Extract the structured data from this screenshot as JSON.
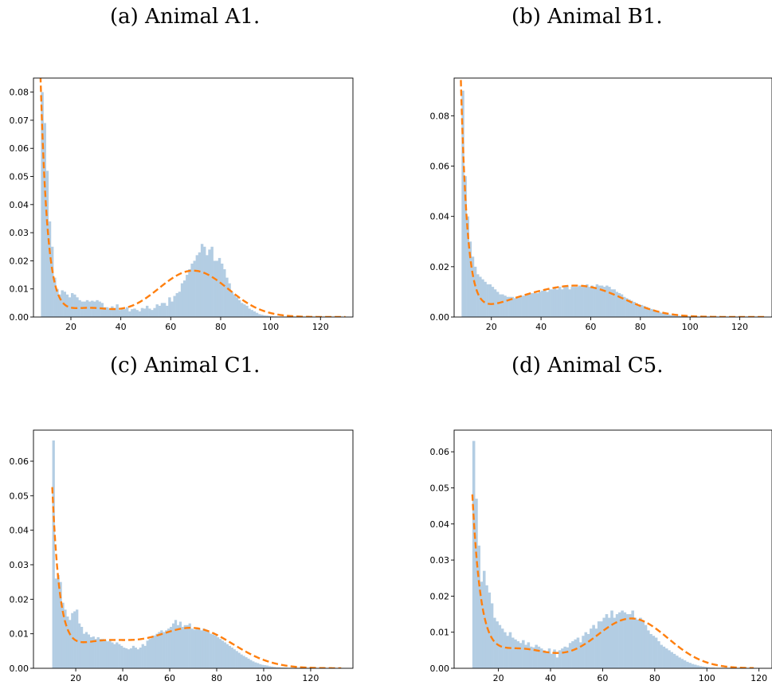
{
  "chart_data": [
    {
      "type": "histogram",
      "caption": "(a) Animal A1.",
      "xlim": [
        5,
        133
      ],
      "ylim": [
        0,
        0.085
      ],
      "xticks": [
        20,
        40,
        60,
        80,
        100,
        120
      ],
      "xtick_labels": [
        "20",
        "40",
        "60",
        "80",
        "100",
        "120"
      ],
      "yticks": [
        0,
        0.01,
        0.02,
        0.03,
        0.04,
        0.05,
        0.06,
        0.07,
        0.08
      ],
      "ytick_labels": [
        "0.00",
        "0.01",
        "0.02",
        "0.03",
        "0.04",
        "0.05",
        "0.06",
        "0.07",
        "0.08"
      ],
      "bin_width": 1,
      "bins_x": [
        8,
        9,
        10,
        11,
        12,
        13,
        14,
        15,
        16,
        17,
        18,
        19,
        20,
        21,
        22,
        23,
        24,
        25,
        26,
        27,
        28,
        29,
        30,
        31,
        32,
        33,
        34,
        35,
        36,
        37,
        38,
        39,
        40,
        41,
        42,
        43,
        44,
        45,
        46,
        47,
        48,
        49,
        50,
        51,
        52,
        53,
        54,
        55,
        56,
        57,
        58,
        59,
        60,
        61,
        62,
        63,
        64,
        65,
        66,
        67,
        68,
        69,
        70,
        71,
        72,
        73,
        74,
        75,
        76,
        77,
        78,
        79,
        80,
        81,
        82,
        83,
        84,
        85,
        86,
        87,
        88,
        89,
        90,
        91,
        92,
        93,
        94,
        95,
        96,
        97,
        98,
        99,
        100,
        101,
        102,
        103,
        104,
        105
      ],
      "bins_y": [
        0.08,
        0.069,
        0.052,
        0.034,
        0.025,
        0.014,
        0.01,
        0.008,
        0.0095,
        0.009,
        0.008,
        0.007,
        0.0085,
        0.008,
        0.007,
        0.006,
        0.0055,
        0.0055,
        0.006,
        0.0055,
        0.0058,
        0.0055,
        0.006,
        0.0055,
        0.005,
        0.0035,
        0.0035,
        0.003,
        0.0038,
        0.0032,
        0.0045,
        0.0025,
        0.003,
        0.0028,
        0.0035,
        0.002,
        0.0028,
        0.003,
        0.0025,
        0.002,
        0.0032,
        0.003,
        0.004,
        0.003,
        0.0025,
        0.0032,
        0.0045,
        0.004,
        0.005,
        0.005,
        0.004,
        0.007,
        0.0055,
        0.0075,
        0.0085,
        0.009,
        0.012,
        0.013,
        0.015,
        0.017,
        0.019,
        0.02,
        0.022,
        0.023,
        0.026,
        0.025,
        0.022,
        0.024,
        0.025,
        0.02,
        0.02,
        0.021,
        0.019,
        0.017,
        0.014,
        0.012,
        0.009,
        0.008,
        0.007,
        0.006,
        0.005,
        0.0045,
        0.004,
        0.003,
        0.0025,
        0.002,
        0.0015,
        0.001,
        0.0008,
        0.0006,
        0.0005,
        0.0004,
        0.0003,
        0.0002,
        0.0002,
        0.0001,
        0.0001,
        0.0001
      ],
      "fit": {
        "x_range": [
          7.5,
          130
        ],
        "components": [
          {
            "type": "exp",
            "a": 0.08,
            "x0": 8,
            "tau": 2.8
          },
          {
            "type": "gauss",
            "a": 0.0165,
            "mu": 69,
            "sd": 14
          },
          {
            "type": "gauss",
            "a": 0.003,
            "mu": 27,
            "sd": 9
          }
        ]
      }
    },
    {
      "type": "histogram",
      "caption": "(b) Animal B1.",
      "xlim": [
        5,
        133
      ],
      "ylim": [
        0,
        0.095
      ],
      "xticks": [
        20,
        40,
        60,
        80,
        100,
        120
      ],
      "xtick_labels": [
        "20",
        "40",
        "60",
        "80",
        "100",
        "120"
      ],
      "yticks": [
        0,
        0.02,
        0.04,
        0.06,
        0.08
      ],
      "ytick_labels": [
        "0.00",
        "0.02",
        "0.04",
        "0.06",
        "0.08"
      ],
      "bin_width": 1,
      "bins_x": [
        8,
        9,
        10,
        11,
        12,
        13,
        14,
        15,
        16,
        17,
        18,
        19,
        20,
        21,
        22,
        23,
        24,
        25,
        26,
        27,
        28,
        29,
        30,
        31,
        32,
        33,
        34,
        35,
        36,
        37,
        38,
        39,
        40,
        41,
        42,
        43,
        44,
        45,
        46,
        47,
        48,
        49,
        50,
        51,
        52,
        53,
        54,
        55,
        56,
        57,
        58,
        59,
        60,
        61,
        62,
        63,
        64,
        65,
        66,
        67,
        68,
        69,
        70,
        71,
        72,
        73,
        74,
        75,
        76,
        77,
        78,
        79,
        80,
        81,
        82,
        83,
        84,
        85,
        86,
        87,
        88,
        89,
        90,
        91,
        92,
        93,
        94,
        95,
        96,
        97,
        98,
        99,
        100,
        101,
        102,
        103,
        104,
        105,
        106,
        107,
        108,
        109,
        110
      ],
      "bins_y": [
        0.09,
        0.056,
        0.04,
        0.03,
        0.024,
        0.02,
        0.017,
        0.016,
        0.015,
        0.014,
        0.013,
        0.013,
        0.012,
        0.011,
        0.01,
        0.009,
        0.009,
        0.0085,
        0.008,
        0.008,
        0.008,
        0.0075,
        0.008,
        0.008,
        0.0085,
        0.0085,
        0.009,
        0.009,
        0.0095,
        0.0095,
        0.0095,
        0.01,
        0.0105,
        0.011,
        0.01,
        0.011,
        0.011,
        0.0115,
        0.011,
        0.012,
        0.011,
        0.012,
        0.0125,
        0.011,
        0.012,
        0.012,
        0.012,
        0.0125,
        0.012,
        0.012,
        0.013,
        0.012,
        0.0125,
        0.012,
        0.013,
        0.0125,
        0.0125,
        0.012,
        0.0125,
        0.012,
        0.011,
        0.011,
        0.01,
        0.0095,
        0.009,
        0.008,
        0.0075,
        0.007,
        0.0065,
        0.006,
        0.0055,
        0.005,
        0.0048,
        0.0044,
        0.004,
        0.0036,
        0.0032,
        0.0028,
        0.0024,
        0.002,
        0.0017,
        0.0014,
        0.0012,
        0.001,
        0.0008,
        0.0007,
        0.0006,
        0.0005,
        0.0004,
        0.0003,
        0.0003,
        0.0002,
        0.0002,
        0.0002,
        0.0001,
        0.0001,
        0.0001,
        0.0001,
        0.0001,
        0.0001,
        0.0001,
        0.0001,
        0.0001
      ],
      "fit": {
        "x_range": [
          7.5,
          130
        ],
        "components": [
          {
            "type": "exp",
            "a": 0.083,
            "x0": 8,
            "tau": 2.6
          },
          {
            "type": "gauss",
            "a": 0.0113,
            "mu": 58,
            "sd": 16
          },
          {
            "type": "gauss",
            "a": 0.0053,
            "mu": 32,
            "sd": 14
          }
        ]
      }
    },
    {
      "type": "histogram",
      "caption": "(c) Animal C1.",
      "xlim": [
        2,
        138
      ],
      "ylim": [
        0,
        0.069
      ],
      "xticks": [
        20,
        40,
        60,
        80,
        100,
        120
      ],
      "xtick_labels": [
        "20",
        "40",
        "60",
        "80",
        "100",
        "120"
      ],
      "yticks": [
        0,
        0.01,
        0.02,
        0.03,
        0.04,
        0.05,
        0.06
      ],
      "ytick_labels": [
        "0.00",
        "0.01",
        "0.02",
        "0.03",
        "0.04",
        "0.05",
        "0.06"
      ],
      "bin_width": 1,
      "bins_x": [
        10,
        11,
        12,
        13,
        14,
        15,
        16,
        17,
        18,
        19,
        20,
        21,
        22,
        23,
        24,
        25,
        26,
        27,
        28,
        29,
        30,
        31,
        32,
        33,
        34,
        35,
        36,
        37,
        38,
        39,
        40,
        41,
        42,
        43,
        44,
        45,
        46,
        47,
        48,
        49,
        50,
        51,
        52,
        53,
        54,
        55,
        56,
        57,
        58,
        59,
        60,
        61,
        62,
        63,
        64,
        65,
        66,
        67,
        68,
        69,
        70,
        71,
        72,
        73,
        74,
        75,
        76,
        77,
        78,
        79,
        80,
        81,
        82,
        83,
        84,
        85,
        86,
        87,
        88,
        89,
        90,
        91,
        92,
        93,
        94,
        95,
        96,
        97,
        98,
        99,
        100,
        101,
        102,
        103,
        104,
        105,
        106,
        107,
        108,
        109,
        110,
        111,
        112,
        113,
        114,
        115,
        116,
        117,
        118
      ],
      "bins_y": [
        0.066,
        0.026,
        0.027,
        0.025,
        0.019,
        0.017,
        0.015,
        0.014,
        0.016,
        0.0165,
        0.017,
        0.013,
        0.012,
        0.01,
        0.0105,
        0.0098,
        0.009,
        0.0092,
        0.0085,
        0.009,
        0.0085,
        0.0085,
        0.0082,
        0.0078,
        0.008,
        0.0075,
        0.007,
        0.0075,
        0.007,
        0.0065,
        0.006,
        0.0058,
        0.0055,
        0.0058,
        0.0065,
        0.006,
        0.0055,
        0.006,
        0.007,
        0.0065,
        0.008,
        0.0085,
        0.009,
        0.0095,
        0.01,
        0.0105,
        0.011,
        0.0105,
        0.011,
        0.0115,
        0.012,
        0.013,
        0.014,
        0.0125,
        0.0135,
        0.012,
        0.0125,
        0.0125,
        0.013,
        0.0115,
        0.0112,
        0.0118,
        0.0115,
        0.011,
        0.0115,
        0.011,
        0.0105,
        0.01,
        0.0098,
        0.0095,
        0.009,
        0.0085,
        0.008,
        0.0075,
        0.007,
        0.0065,
        0.006,
        0.0055,
        0.005,
        0.0045,
        0.004,
        0.0036,
        0.0032,
        0.0028,
        0.0024,
        0.002,
        0.0017,
        0.0015,
        0.0012,
        0.001,
        0.0009,
        0.0008,
        0.0006,
        0.0005,
        0.0004,
        0.0003,
        0.0003,
        0.0002,
        0.0002,
        0.0002,
        0.0001,
        0.0001,
        0.0001,
        0.0001,
        0.0001,
        0.0001,
        0.0001,
        0.0001,
        0.0001
      ],
      "fit": {
        "x_range": [
          10,
          133
        ],
        "components": [
          {
            "type": "exp",
            "a": 0.0495,
            "x0": 10,
            "tau": 3.2
          },
          {
            "type": "gauss",
            "a": 0.0115,
            "mu": 70,
            "sd": 17
          },
          {
            "type": "gauss",
            "a": 0.0072,
            "mu": 30,
            "sd": 15
          }
        ]
      }
    },
    {
      "type": "histogram",
      "caption": "(d) Animal C5.",
      "xlim": [
        3,
        125
      ],
      "ylim": [
        0,
        0.066
      ],
      "xticks": [
        20,
        40,
        60,
        80,
        100,
        120
      ],
      "xtick_labels": [
        "20",
        "40",
        "60",
        "80",
        "100",
        "120"
      ],
      "yticks": [
        0,
        0.01,
        0.02,
        0.03,
        0.04,
        0.05,
        0.06
      ],
      "ytick_labels": [
        "0.00",
        "0.01",
        "0.02",
        "0.03",
        "0.04",
        "0.05",
        "0.06"
      ],
      "bin_width": 1,
      "bins_x": [
        10,
        11,
        12,
        13,
        14,
        15,
        16,
        17,
        18,
        19,
        20,
        21,
        22,
        23,
        24,
        25,
        26,
        27,
        28,
        29,
        30,
        31,
        32,
        33,
        34,
        35,
        36,
        37,
        38,
        39,
        40,
        41,
        42,
        43,
        44,
        45,
        46,
        47,
        48,
        49,
        50,
        51,
        52,
        53,
        54,
        55,
        56,
        57,
        58,
        59,
        60,
        61,
        62,
        63,
        64,
        65,
        66,
        67,
        68,
        69,
        70,
        71,
        72,
        73,
        74,
        75,
        76,
        77,
        78,
        79,
        80,
        81,
        82,
        83,
        84,
        85,
        86,
        87,
        88,
        89,
        90,
        91,
        92,
        93,
        94,
        95,
        96,
        97,
        98,
        99,
        100,
        101,
        102,
        103,
        104,
        105,
        106,
        107,
        108,
        109,
        110,
        111,
        112,
        113,
        114,
        115,
        116,
        117
      ],
      "bins_y": [
        0.063,
        0.047,
        0.034,
        0.024,
        0.027,
        0.023,
        0.021,
        0.018,
        0.014,
        0.013,
        0.012,
        0.011,
        0.01,
        0.009,
        0.01,
        0.0085,
        0.008,
        0.0075,
        0.007,
        0.0078,
        0.0065,
        0.0072,
        0.006,
        0.0058,
        0.0065,
        0.006,
        0.0055,
        0.005,
        0.0045,
        0.0055,
        0.004,
        0.0052,
        0.003,
        0.005,
        0.0055,
        0.006,
        0.0058,
        0.007,
        0.0075,
        0.008,
        0.0085,
        0.0072,
        0.009,
        0.01,
        0.0095,
        0.011,
        0.012,
        0.011,
        0.013,
        0.013,
        0.014,
        0.015,
        0.014,
        0.016,
        0.014,
        0.015,
        0.0155,
        0.016,
        0.0155,
        0.015,
        0.015,
        0.016,
        0.014,
        0.0135,
        0.014,
        0.013,
        0.012,
        0.0105,
        0.0095,
        0.009,
        0.0085,
        0.0075,
        0.0065,
        0.006,
        0.0055,
        0.005,
        0.0045,
        0.004,
        0.0035,
        0.003,
        0.0026,
        0.0022,
        0.0018,
        0.0015,
        0.0012,
        0.001,
        0.0008,
        0.0006,
        0.0005,
        0.0004,
        0.0003,
        0.0002,
        0.0002,
        0.0001,
        0.0001,
        0.0001,
        0.0001,
        0.0001,
        0.0001,
        0.0001,
        0.0001,
        0.0001,
        0.0001,
        0.0001,
        0.0001,
        0.0001,
        0.0001,
        0.0001
      ],
      "fit": {
        "x_range": [
          10,
          118
        ],
        "components": [
          {
            "type": "exp",
            "a": 0.0465,
            "x0": 10,
            "tau": 3.3
          },
          {
            "type": "gauss",
            "a": 0.0138,
            "mu": 71,
            "sd": 14
          },
          {
            "type": "gauss",
            "a": 0.0052,
            "mu": 28,
            "sd": 12
          }
        ]
      }
    }
  ],
  "colors": {
    "bars": "#b3cde3",
    "fit": "#ff7f0e",
    "axis": "#000000"
  }
}
